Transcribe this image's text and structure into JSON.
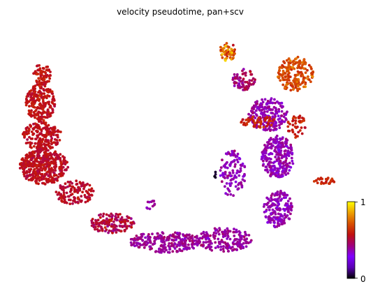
{
  "chart_data": {
    "type": "scatter",
    "title": "velocity pseudotime, pan+scv",
    "xlabel": "",
    "ylabel": "",
    "grid": false,
    "legend": "none",
    "colormap": {
      "name": "gnuplot",
      "range": [
        0,
        1
      ],
      "tick_labels": [
        "0",
        "1"
      ],
      "stops": [
        "#000000",
        "#5a00b4",
        "#7f00ff",
        "#a0007a",
        "#c01010",
        "#d85000",
        "#eea000",
        "#ffff00"
      ]
    },
    "regions": [
      {
        "name": "left-tip",
        "cx": 0.07,
        "cy": 0.82,
        "rx": 0.028,
        "ry": 0.045,
        "n": 70,
        "value": 0.58,
        "spread": 0.03
      },
      {
        "name": "left-upper",
        "cx": 0.065,
        "cy": 0.7,
        "rx": 0.045,
        "ry": 0.08,
        "n": 230,
        "value": 0.57,
        "spread": 0.03
      },
      {
        "name": "left-mid",
        "cx": 0.07,
        "cy": 0.56,
        "rx": 0.06,
        "ry": 0.06,
        "n": 200,
        "value": 0.56,
        "spread": 0.03
      },
      {
        "name": "left-blob",
        "cx": 0.075,
        "cy": 0.43,
        "rx": 0.075,
        "ry": 0.075,
        "n": 430,
        "value": 0.55,
        "spread": 0.03
      },
      {
        "name": "left-lower",
        "cx": 0.17,
        "cy": 0.32,
        "rx": 0.06,
        "ry": 0.05,
        "n": 130,
        "value": 0.54,
        "spread": 0.03
      },
      {
        "name": "bottom-left",
        "cx": 0.29,
        "cy": 0.19,
        "rx": 0.07,
        "ry": 0.045,
        "n": 140,
        "value": 0.5,
        "spread": 0.05
      },
      {
        "name": "bottom-mid",
        "cx": 0.45,
        "cy": 0.11,
        "rx": 0.11,
        "ry": 0.045,
        "n": 240,
        "value": 0.4,
        "spread": 0.03
      },
      {
        "name": "bottom-right",
        "cx": 0.63,
        "cy": 0.12,
        "rx": 0.09,
        "ry": 0.05,
        "n": 180,
        "value": 0.39,
        "spread": 0.03
      },
      {
        "name": "small-island",
        "cx": 0.405,
        "cy": 0.27,
        "rx": 0.014,
        "ry": 0.025,
        "n": 12,
        "value": 0.38,
        "spread": 0.02
      },
      {
        "name": "right-lower",
        "cx": 0.8,
        "cy": 0.25,
        "rx": 0.045,
        "ry": 0.08,
        "n": 170,
        "value": 0.37,
        "spread": 0.03
      },
      {
        "name": "right-mid",
        "cx": 0.8,
        "cy": 0.47,
        "rx": 0.05,
        "ry": 0.09,
        "n": 260,
        "value": 0.37,
        "spread": 0.03
      },
      {
        "name": "inner-arm",
        "cx": 0.66,
        "cy": 0.4,
        "rx": 0.04,
        "ry": 0.1,
        "n": 110,
        "value": 0.36,
        "spread": 0.03
      },
      {
        "name": "dark-spot",
        "cx": 0.61,
        "cy": 0.4,
        "rx": 0.008,
        "ry": 0.018,
        "n": 4,
        "value": 0.05,
        "spread": 0.02
      },
      {
        "name": "right-upper",
        "cx": 0.77,
        "cy": 0.65,
        "rx": 0.06,
        "ry": 0.07,
        "n": 200,
        "value": 0.38,
        "spread": 0.03
      },
      {
        "name": "top-arm",
        "cx": 0.695,
        "cy": 0.8,
        "rx": 0.035,
        "ry": 0.05,
        "n": 70,
        "value": 0.45,
        "spread": 0.05
      },
      {
        "name": "top-tip",
        "cx": 0.645,
        "cy": 0.915,
        "rx": 0.026,
        "ry": 0.04,
        "n": 55,
        "value": 0.75,
        "spread": 0.1
      },
      {
        "name": "upper-right-blob",
        "cx": 0.855,
        "cy": 0.82,
        "rx": 0.055,
        "ry": 0.075,
        "n": 200,
        "value": 0.7,
        "spread": 0.05
      },
      {
        "name": "mid-red-band",
        "cx": 0.74,
        "cy": 0.62,
        "rx": 0.055,
        "ry": 0.025,
        "n": 55,
        "value": 0.62,
        "spread": 0.04
      },
      {
        "name": "right-red-patch",
        "cx": 0.86,
        "cy": 0.6,
        "rx": 0.03,
        "ry": 0.05,
        "n": 45,
        "value": 0.6,
        "spread": 0.04
      },
      {
        "name": "far-right-tail",
        "cx": 0.945,
        "cy": 0.37,
        "rx": 0.035,
        "ry": 0.014,
        "n": 30,
        "value": 0.62,
        "spread": 0.03
      }
    ]
  }
}
